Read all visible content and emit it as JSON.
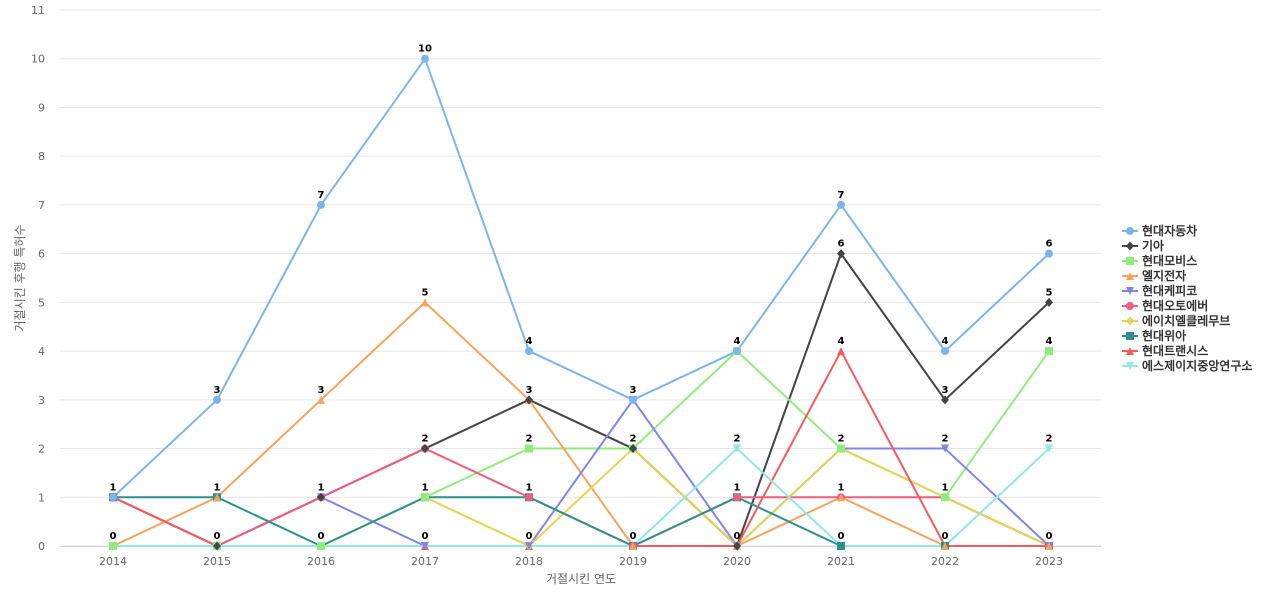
{
  "chart_data": {
    "type": "line",
    "title": "",
    "xlabel": "거절시킨 연도",
    "ylabel": "거절시킨 후행 특허수",
    "x": [
      "2014",
      "2015",
      "2016",
      "2017",
      "2018",
      "2019",
      "2020",
      "2021",
      "2022",
      "2023"
    ],
    "ylim": [
      0,
      11
    ],
    "yticks": [
      0,
      1,
      2,
      3,
      4,
      5,
      6,
      7,
      8,
      9,
      10,
      11
    ],
    "grid": true,
    "legend_position": "right",
    "series": [
      {
        "name": "현대자동차",
        "color": "#7cb5ec",
        "marker": "circle",
        "values": [
          1,
          3,
          7,
          10,
          4,
          3,
          4,
          7,
          4,
          6
        ]
      },
      {
        "name": "기아",
        "color": "#434348",
        "marker": "diamond",
        "values": [
          1,
          0,
          1,
          2,
          3,
          2,
          0,
          6,
          3,
          5
        ]
      },
      {
        "name": "현대모비스",
        "color": "#90ed7d",
        "marker": "square",
        "values": [
          0,
          0,
          0,
          1,
          2,
          2,
          4,
          2,
          1,
          4
        ]
      },
      {
        "name": "엘지전자",
        "color": "#f7a35c",
        "marker": "triangle",
        "values": [
          0,
          1,
          3,
          5,
          3,
          0,
          0,
          1,
          0,
          0
        ]
      },
      {
        "name": "현대케피코",
        "color": "#8085e9",
        "marker": "triangle-down",
        "values": [
          1,
          0,
          1,
          0,
          0,
          3,
          0,
          2,
          2,
          0
        ]
      },
      {
        "name": "현대오토에버",
        "color": "#f15c80",
        "marker": "circle",
        "values": [
          1,
          0,
          1,
          2,
          1,
          0,
          1,
          1,
          1,
          0
        ]
      },
      {
        "name": "에이치엘클레무브",
        "color": "#e4d354",
        "marker": "diamond",
        "values": [
          0,
          0,
          0,
          1,
          0,
          2,
          0,
          2,
          1,
          0
        ]
      },
      {
        "name": "현대위아",
        "color": "#2b908f",
        "marker": "square",
        "values": [
          1,
          1,
          0,
          1,
          1,
          0,
          1,
          0,
          0,
          0
        ]
      },
      {
        "name": "현대트랜시스",
        "color": "#f45b5b",
        "marker": "triangle",
        "values": [
          1,
          0,
          0,
          0,
          0,
          0,
          0,
          4,
          0,
          0
        ]
      },
      {
        "name": "에스제이지중앙연구소",
        "color": "#91e8e1",
        "marker": "triangle-down",
        "values": [
          0,
          0,
          0,
          0,
          0,
          0,
          2,
          0,
          0,
          2
        ]
      }
    ],
    "data_labels": {
      "series_index": 0,
      "values": [
        1,
        3,
        7,
        10,
        4,
        3,
        4,
        7,
        4,
        6
      ]
    },
    "extra_labels": [
      {
        "x": "2014",
        "label": "0",
        "at": 0
      },
      {
        "x": "2015",
        "label": "1",
        "at": 1
      },
      {
        "x": "2015",
        "label": "0",
        "at": 0
      },
      {
        "x": "2016",
        "label": "3",
        "at": 3
      },
      {
        "x": "2016",
        "label": "1",
        "at": 1
      },
      {
        "x": "2016",
        "label": "0",
        "at": 0
      },
      {
        "x": "2017",
        "label": "5",
        "at": 5
      },
      {
        "x": "2017",
        "label": "2",
        "at": 2
      },
      {
        "x": "2017",
        "label": "1",
        "at": 1
      },
      {
        "x": "2017",
        "label": "0",
        "at": 0
      },
      {
        "x": "2018",
        "label": "3",
        "at": 3
      },
      {
        "x": "2018",
        "label": "2",
        "at": 2
      },
      {
        "x": "2018",
        "label": "1",
        "at": 1
      },
      {
        "x": "2018",
        "label": "0",
        "at": 0
      },
      {
        "x": "2019",
        "label": "2",
        "at": 2
      },
      {
        "x": "2019",
        "label": "0",
        "at": 0
      },
      {
        "x": "2020",
        "label": "2",
        "at": 2
      },
      {
        "x": "2020",
        "label": "1",
        "at": 1
      },
      {
        "x": "2020",
        "label": "0",
        "at": 0
      },
      {
        "x": "2021",
        "label": "6",
        "at": 6
      },
      {
        "x": "2021",
        "label": "4",
        "at": 4
      },
      {
        "x": "2021",
        "label": "2",
        "at": 2
      },
      {
        "x": "2021",
        "label": "1",
        "at": 1
      },
      {
        "x": "2021",
        "label": "0",
        "at": 0
      },
      {
        "x": "2022",
        "label": "3",
        "at": 3
      },
      {
        "x": "2022",
        "label": "2",
        "at": 2
      },
      {
        "x": "2022",
        "label": "1",
        "at": 1
      },
      {
        "x": "2022",
        "label": "0",
        "at": 0
      },
      {
        "x": "2023",
        "label": "5",
        "at": 5
      },
      {
        "x": "2023",
        "label": "4",
        "at": 4
      },
      {
        "x": "2023",
        "label": "2",
        "at": 2
      },
      {
        "x": "2023",
        "label": "0",
        "at": 0
      }
    ]
  }
}
